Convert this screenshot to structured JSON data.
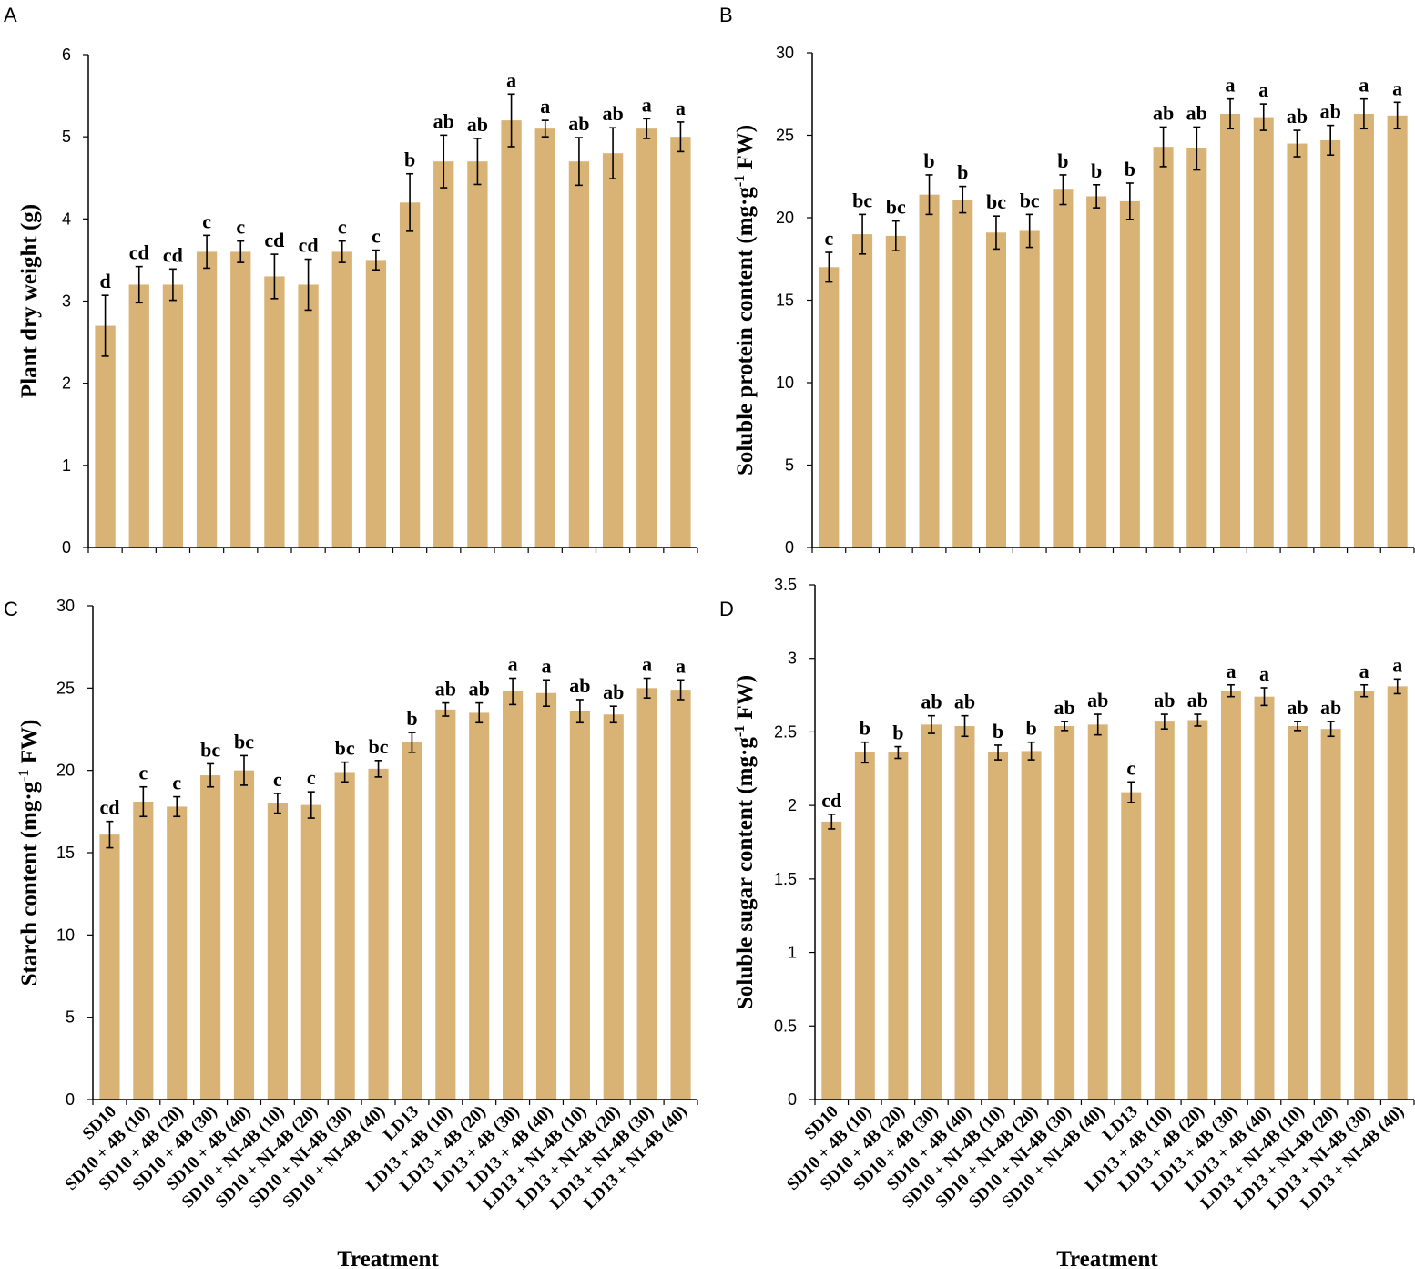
{
  "colors": {
    "bar": "#d9b275",
    "axis": "#000000",
    "text": "#000000"
  },
  "chart_data": [
    {
      "panel": "A",
      "type": "bar",
      "ylabel": "Plant dry weight (g)",
      "xlabel": "",
      "ylim": [
        0,
        6
      ],
      "yticks": [
        "0",
        "1",
        "2",
        "3",
        "4",
        "5",
        "6"
      ],
      "categories": [
        "SD10",
        "SD10 + 4B (10)",
        "SD10 + 4B (20)",
        "SD10 + 4B (30)",
        "SD10 + 4B (40)",
        "SD10 + NI-4B (10)",
        "SD10 + NI-4B (20)",
        "SD10 + NI-4B (30)",
        "SD10 + NI-4B (40)",
        "LD13",
        "LD13 + 4B (10)",
        "LD13 + 4B (20)",
        "LD13 + 4B (30)",
        "LD13 + 4B (40)",
        "LD13 + NI-4B (10)",
        "LD13 + NI-4B (20)",
        "LD13 + NI-4B (30)",
        "LD13 + NI-4B (40)"
      ],
      "values": [
        2.7,
        3.2,
        3.2,
        3.6,
        3.6,
        3.3,
        3.2,
        3.6,
        3.5,
        4.2,
        4.7,
        4.7,
        5.2,
        5.1,
        4.7,
        4.8,
        5.1,
        5.0
      ],
      "errors": [
        0.37,
        0.22,
        0.19,
        0.2,
        0.13,
        0.27,
        0.31,
        0.13,
        0.12,
        0.35,
        0.32,
        0.28,
        0.32,
        0.1,
        0.29,
        0.31,
        0.12,
        0.18
      ],
      "letters": [
        "d",
        "cd",
        "cd",
        "c",
        "c",
        "cd",
        "cd",
        "c",
        "c",
        "b",
        "ab",
        "ab",
        "a",
        "a",
        "ab",
        "ab",
        "a",
        "a"
      ]
    },
    {
      "panel": "B",
      "type": "bar",
      "ylabel": "Soluble protein content (mg·g-1 FW)",
      "xlabel": "",
      "ylim": [
        0,
        30
      ],
      "yticks": [
        "0",
        "5",
        "10",
        "15",
        "20",
        "25",
        "30"
      ],
      "categories": [
        "SD10",
        "SD10 + 4B (10)",
        "SD10 + 4B (20)",
        "SD10 + 4B (30)",
        "SD10 + 4B (40)",
        "SD10 + NI-4B (10)",
        "SD10 + NI-4B (20)",
        "SD10 + NI-4B (30)",
        "SD10 + NI-4B (40)",
        "LD13",
        "LD13 + 4B (10)",
        "LD13 + 4B (20)",
        "LD13 + 4B (30)",
        "LD13 + 4B (40)",
        "LD13 + NI-4B (10)",
        "LD13 + NI-4B (20)",
        "LD13 + NI-4B (30)",
        "LD13 + NI-4B (40)"
      ],
      "values": [
        17.0,
        19.0,
        18.9,
        21.4,
        21.1,
        19.1,
        19.2,
        21.7,
        21.3,
        21.0,
        24.3,
        24.2,
        26.3,
        26.1,
        24.5,
        24.7,
        26.3,
        26.2
      ],
      "errors": [
        0.9,
        1.2,
        0.9,
        1.2,
        0.8,
        1.0,
        1.0,
        0.9,
        0.7,
        1.1,
        1.2,
        1.3,
        0.9,
        0.8,
        0.8,
        0.9,
        0.9,
        0.8
      ],
      "letters": [
        "c",
        "bc",
        "bc",
        "b",
        "b",
        "bc",
        "bc",
        "b",
        "b",
        "b",
        "ab",
        "ab",
        "a",
        "a",
        "ab",
        "ab",
        "a",
        "a"
      ]
    },
    {
      "panel": "C",
      "type": "bar",
      "ylabel": "Starch content (mg·g-1 FW)",
      "xlabel": "Treatment",
      "ylim": [
        0,
        30
      ],
      "yticks": [
        "0",
        "5",
        "10",
        "15",
        "20",
        "25",
        "30"
      ],
      "categories": [
        "SD10",
        "SD10 + 4B (10)",
        "SD10 + 4B (20)",
        "SD10 + 4B (30)",
        "SD10 + 4B (40)",
        "SD10 + NI-4B (10)",
        "SD10 + NI-4B (20)",
        "SD10 + NI-4B (30)",
        "SD10 + NI-4B (40)",
        "LD13",
        "LD13 + 4B (10)",
        "LD13 + 4B (20)",
        "LD13 + 4B (30)",
        "LD13 + 4B (40)",
        "LD13 + NI-4B (10)",
        "LD13 + NI-4B (20)",
        "LD13 + NI-4B (30)",
        "LD13 + NI-4B (40)"
      ],
      "values": [
        16.1,
        18.1,
        17.8,
        19.7,
        20.0,
        18.0,
        17.9,
        19.9,
        20.1,
        21.7,
        23.7,
        23.5,
        24.8,
        24.7,
        23.6,
        23.4,
        25.0,
        24.9
      ],
      "errors": [
        0.8,
        0.9,
        0.6,
        0.7,
        0.9,
        0.6,
        0.8,
        0.6,
        0.5,
        0.6,
        0.4,
        0.6,
        0.8,
        0.8,
        0.7,
        0.5,
        0.6,
        0.6
      ],
      "letters": [
        "cd",
        "c",
        "c",
        "bc",
        "bc",
        "c",
        "c",
        "bc",
        "bc",
        "b",
        "ab",
        "ab",
        "a",
        "a",
        "ab",
        "ab",
        "a",
        "a"
      ]
    },
    {
      "panel": "D",
      "type": "bar",
      "ylabel": "Soluble sugar content (mg·g-1 FW)",
      "xlabel": "Treatment",
      "ylim": [
        0,
        3.5
      ],
      "yticks": [
        "0",
        "0.5",
        "1",
        "1.5",
        "2",
        "2.5",
        "3",
        "3.5"
      ],
      "categories": [
        "SD10",
        "SD10 + 4B (10)",
        "SD10 + 4B (20)",
        "SD10 + 4B (30)",
        "SD10 + 4B (40)",
        "SD10 + NI-4B (10)",
        "SD10 + NI-4B (20)",
        "SD10 + NI-4B (30)",
        "SD10 + NI-4B (40)",
        "LD13",
        "LD13 + 4B (10)",
        "LD13 + 4B (20)",
        "LD13 + 4B (30)",
        "LD13 + 4B (40)",
        "LD13 + NI-4B (10)",
        "LD13 + NI-4B (20)",
        "LD13 + NI-4B (30)",
        "LD13 + NI-4B (40)"
      ],
      "values": [
        1.89,
        2.36,
        2.36,
        2.55,
        2.54,
        2.36,
        2.37,
        2.54,
        2.55,
        2.09,
        2.57,
        2.58,
        2.78,
        2.74,
        2.54,
        2.52,
        2.78,
        2.81
      ],
      "errors": [
        0.05,
        0.07,
        0.04,
        0.06,
        0.07,
        0.05,
        0.06,
        0.03,
        0.07,
        0.07,
        0.05,
        0.04,
        0.04,
        0.06,
        0.03,
        0.05,
        0.04,
        0.05
      ],
      "letters": [
        "cd",
        "b",
        "b",
        "ab",
        "ab",
        "b",
        "b",
        "ab",
        "ab",
        "c",
        "ab",
        "ab",
        "a",
        "a",
        "ab",
        "ab",
        "a",
        "a"
      ]
    }
  ]
}
